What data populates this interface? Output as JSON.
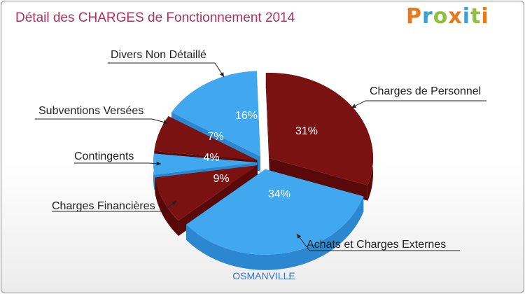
{
  "title": "Détail des CHARGES de Fonctionnement 2014",
  "logo": "Proxiti",
  "commune": "OSMANVILLE",
  "colors": {
    "red": "#7a1212",
    "redDark": "#5a0909",
    "blue": "#41a8f0",
    "blueDark": "#2b87cf"
  },
  "chart_data": {
    "type": "pie",
    "title": "Détail des CHARGES de Fonctionnement 2014",
    "slices": [
      {
        "label": "Charges de Personnel",
        "value": 31,
        "pct_label": "31%",
        "color": "red"
      },
      {
        "label": "Achats et Charges Externes",
        "value": 34,
        "pct_label": "34%",
        "color": "blue"
      },
      {
        "label": "Charges Financières",
        "value": 9,
        "pct_label": "9%",
        "color": "red"
      },
      {
        "label": "Contingents",
        "value": 4,
        "pct_label": "4%",
        "color": "blue"
      },
      {
        "label": "Subventions Versées",
        "value": 7,
        "pct_label": "7%",
        "color": "red"
      },
      {
        "label": "Divers Non Détaillé",
        "value": 16,
        "pct_label": "16%",
        "color": "blue"
      }
    ]
  }
}
